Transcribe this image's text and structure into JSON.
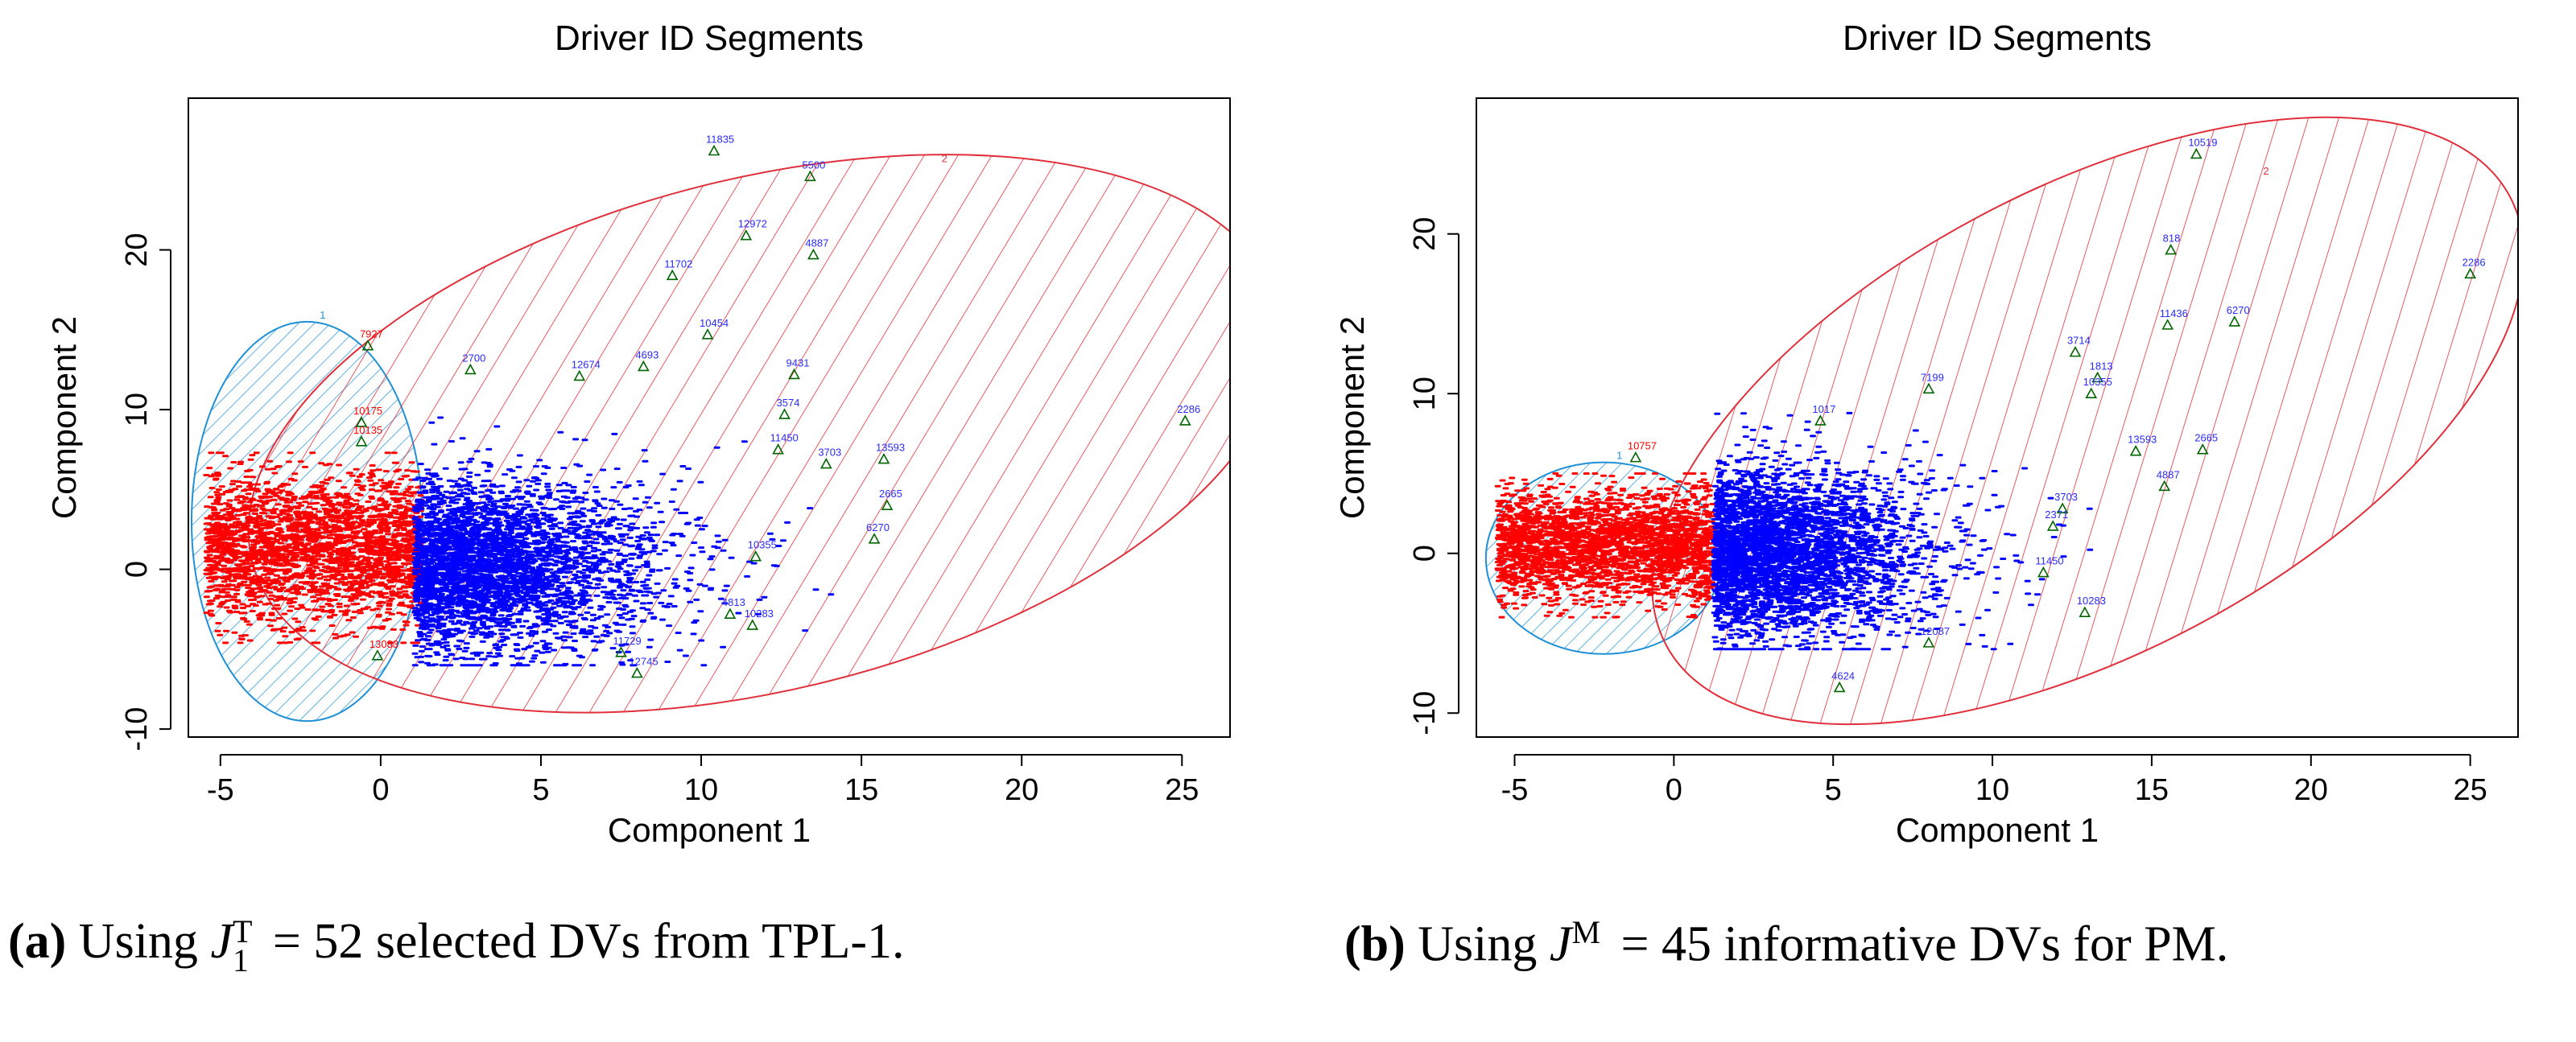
{
  "figure": {
    "panels": [
      {
        "id": "a",
        "caption": {
          "label": "(a)",
          "before": "Using",
          "symbol": "J",
          "sup": "T",
          "sub": "1",
          "after": "= 52 selected DVs from TPL-1."
        },
        "cluster_labels": {
          "c1": "1",
          "c2": "2"
        },
        "point_labels": [
          {
            "text": "11835",
            "x": 10.4,
            "y": 26.2
          },
          {
            "text": "5500",
            "x": 13.4,
            "y": 24.6
          },
          {
            "text": "12972",
            "x": 11.4,
            "y": 20.9
          },
          {
            "text": "4887",
            "x": 13.5,
            "y": 19.7
          },
          {
            "text": "11702",
            "x": 9.1,
            "y": 18.4
          },
          {
            "text": "10454",
            "x": 10.2,
            "y": 14.7
          },
          {
            "text": "7927",
            "x": -0.4,
            "y": 14.0
          },
          {
            "text": "2700",
            "x": 2.8,
            "y": 12.5
          },
          {
            "text": "12674",
            "x": 6.2,
            "y": 12.1
          },
          {
            "text": "4693",
            "x": 8.2,
            "y": 12.7
          },
          {
            "text": "9431",
            "x": 12.9,
            "y": 12.2
          },
          {
            "text": "3574",
            "x": 12.6,
            "y": 9.7
          },
          {
            "text": "13593",
            "x": 15.7,
            "y": 6.9
          },
          {
            "text": "3703",
            "x": 13.9,
            "y": 6.6
          },
          {
            "text": "11450",
            "x": 12.4,
            "y": 7.5
          },
          {
            "text": "2286",
            "x": 25.1,
            "y": 9.3
          },
          {
            "text": "2665",
            "x": 15.8,
            "y": 4.0
          },
          {
            "text": "6270",
            "x": 15.4,
            "y": 1.9
          },
          {
            "text": "10355",
            "x": 11.7,
            "y": 0.8
          },
          {
            "text": "10283",
            "x": 11.6,
            "y": -3.5
          },
          {
            "text": "4813",
            "x": 10.9,
            "y": -2.8
          },
          {
            "text": "11729",
            "x": 7.5,
            "y": -5.2
          },
          {
            "text": "12745",
            "x": 8.0,
            "y": -6.5
          },
          {
            "text": "10175",
            "x": -0.6,
            "y": 9.2
          },
          {
            "text": "10135",
            "x": -0.6,
            "y": 8.0
          },
          {
            "text": "13083",
            "x": -0.1,
            "y": -5.4
          }
        ]
      },
      {
        "id": "b",
        "caption": {
          "label": "(b)",
          "before": "Using",
          "symbol": "J",
          "sup": "M",
          "sub": "",
          "after": "= 45 informative DVs for PM."
        },
        "cluster_labels": {
          "c1": "1",
          "c2": "2"
        },
        "point_labels": [
          {
            "text": "10519",
            "x": 16.4,
            "y": 25.0
          },
          {
            "text": "818",
            "x": 15.6,
            "y": 19.0
          },
          {
            "text": "2286",
            "x": 25.0,
            "y": 17.5
          },
          {
            "text": "11436",
            "x": 15.5,
            "y": 14.3
          },
          {
            "text": "6270",
            "x": 17.6,
            "y": 14.5
          },
          {
            "text": "3714",
            "x": 12.6,
            "y": 12.6
          },
          {
            "text": "1813",
            "x": 13.3,
            "y": 11.0
          },
          {
            "text": "10355",
            "x": 13.1,
            "y": 10.0
          },
          {
            "text": "7199",
            "x": 8.0,
            "y": 10.3
          },
          {
            "text": "1017",
            "x": 4.6,
            "y": 8.3
          },
          {
            "text": "13593",
            "x": 14.5,
            "y": 6.4
          },
          {
            "text": "2665",
            "x": 16.6,
            "y": 6.5
          },
          {
            "text": "3703",
            "x": 12.2,
            "y": 2.8
          },
          {
            "text": "4887",
            "x": 15.4,
            "y": 4.2
          },
          {
            "text": "2371",
            "x": 11.9,
            "y": 1.7
          },
          {
            "text": "11450",
            "x": 11.6,
            "y": -1.2
          },
          {
            "text": "10283",
            "x": 12.9,
            "y": -3.7
          },
          {
            "text": "4624",
            "x": 5.2,
            "y": -8.4
          },
          {
            "text": "10757",
            "x": -1.2,
            "y": 6.0
          },
          {
            "text": "12087",
            "x": 8.0,
            "y": -5.6
          }
        ]
      }
    ]
  },
  "chart_data": [
    {
      "type": "scatter",
      "title": "Driver ID Segments",
      "xlabel": "Component 1",
      "ylabel": "Component 2",
      "xlim": [
        -6,
        26.5
      ],
      "ylim": [
        -10.5,
        29.5
      ],
      "xticks": [
        -5,
        0,
        5,
        10,
        15,
        20,
        25
      ],
      "yticks": [
        -10,
        0,
        10,
        20
      ],
      "grid": false,
      "legend": "none",
      "colors": {
        "cluster1_points": "#ff0000",
        "cluster2_points": "#0000ff",
        "cluster1_ellipse": "#1f90d8",
        "cluster2_ellipse": "#e0303c",
        "marker": "#006400"
      },
      "series": [
        {
          "cluster": "1",
          "point_cloud": {
            "x_range": [
              -5.5,
              1.2
            ],
            "y_range": [
              -4.6,
              7.3
            ],
            "density": "dense"
          },
          "ellipse": {
            "center": [
              -2.3,
              3.0
            ],
            "rx": 3.6,
            "ry": 12.5,
            "angle_deg": 0
          }
        },
        {
          "cluster": "2",
          "point_cloud": {
            "x_range": [
              1.0,
              14.0
            ],
            "y_range": [
              -6.0,
              9.5
            ],
            "density": "dense",
            "outliers_marked": true
          },
          "ellipse": {
            "center": [
              12.0,
              8.5
            ],
            "rx": 16.5,
            "ry": 16.0,
            "angle_deg": -14
          }
        }
      ]
    },
    {
      "type": "scatter",
      "title": "Driver ID Segments",
      "xlabel": "Component 1",
      "ylabel": "Component 2",
      "xlim": [
        -6.2,
        26.5
      ],
      "ylim": [
        -11.5,
        28.5
      ],
      "xticks": [
        -5,
        0,
        5,
        10,
        15,
        20,
        25
      ],
      "yticks": [
        -10,
        0,
        10,
        20
      ],
      "grid": false,
      "legend": "none",
      "colors": {
        "cluster1_points": "#ff0000",
        "cluster2_points": "#0000ff",
        "cluster1_ellipse": "#1f90d8",
        "cluster2_ellipse": "#e0303c",
        "marker": "#006400"
      },
      "series": [
        {
          "cluster": "1",
          "point_cloud": {
            "x_range": [
              -5.6,
              1.2
            ],
            "y_range": [
              -4.0,
              5.0
            ],
            "density": "dense"
          },
          "ellipse": {
            "center": [
              -2.2,
              -0.3
            ],
            "rx": 3.7,
            "ry": 6.0,
            "angle_deg": 0
          }
        },
        {
          "cluster": "2",
          "point_cloud": {
            "x_range": [
              1.2,
              13.0
            ],
            "y_range": [
              -6.0,
              9.0
            ],
            "density": "dense",
            "outliers_marked": true
          },
          "ellipse": {
            "center": [
              13.0,
              8.3
            ],
            "rx": 15.0,
            "ry": 14.5,
            "angle_deg": -28
          }
        }
      ]
    }
  ]
}
